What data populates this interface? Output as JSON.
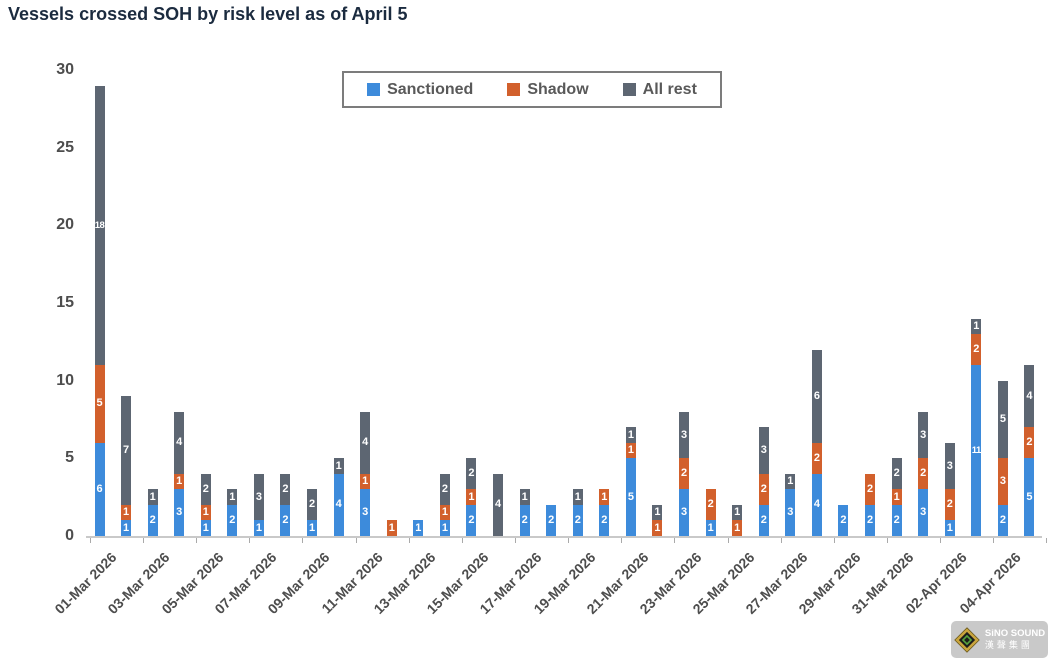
{
  "title": "Vessels crossed SOH by risk level as of April 5",
  "chart_data": {
    "type": "bar",
    "stacked": true,
    "title": "Vessels crossed SOH by risk level as of April 5",
    "categories": [
      "01-Mar 2026",
      "02-Mar 2026",
      "03-Mar 2026",
      "04-Mar 2026",
      "05-Mar 2026",
      "06-Mar 2026",
      "07-Mar 2026",
      "08-Mar 2026",
      "09-Mar 2026",
      "10-Mar 2026",
      "11-Mar 2026",
      "12-Mar 2026",
      "13-Mar 2026",
      "14-Mar 2026",
      "15-Mar 2026",
      "16-Mar 2026",
      "17-Mar 2026",
      "18-Mar 2026",
      "19-Mar 2026",
      "20-Mar 2026",
      "21-Mar 2026",
      "22-Mar 2026",
      "23-Mar 2026",
      "24-Mar 2026",
      "25-Mar 2026",
      "26-Mar 2026",
      "27-Mar 2026",
      "28-Mar 2026",
      "29-Mar 2026",
      "30-Mar 2026",
      "31-Mar 2026",
      "01-Apr 2026",
      "02-Apr 2026",
      "03-Apr 2026",
      "04-Apr 2026",
      "05-Apr 2026"
    ],
    "x_tick_labels": [
      "01-Mar 2026",
      "03-Mar 2026",
      "05-Mar 2026",
      "07-Mar 2026",
      "09-Mar 2026",
      "11-Mar 2026",
      "13-Mar 2026",
      "15-Mar 2026",
      "17-Mar 2026",
      "19-Mar 2026",
      "21-Mar 2026",
      "23-Mar 2026",
      "25-Mar 2026",
      "27-Mar 2026",
      "29-Mar 2026",
      "31-Mar 2026",
      "02-Apr 2026",
      "04-Apr 2026"
    ],
    "series": [
      {
        "name": "Sanctioned",
        "color": "#3d8bdb",
        "values": [
          6,
          1,
          2,
          3,
          1,
          2,
          1,
          2,
          1,
          4,
          3,
          0,
          1,
          1,
          2,
          0,
          2,
          2,
          2,
          2,
          5,
          0,
          3,
          1,
          0,
          2,
          3,
          4,
          2,
          2,
          2,
          3,
          1,
          11,
          2,
          5
        ]
      },
      {
        "name": "Shadow",
        "color": "#d2602c",
        "values": [
          5,
          1,
          0,
          1,
          1,
          0,
          0,
          0,
          0,
          0,
          1,
          1,
          0,
          1,
          1,
          0,
          0,
          0,
          0,
          1,
          1,
          1,
          2,
          2,
          1,
          2,
          0,
          2,
          0,
          2,
          1,
          2,
          2,
          2,
          3,
          2
        ]
      },
      {
        "name": "All rest",
        "color": "#5d6672",
        "values": [
          18,
          7,
          1,
          4,
          2,
          1,
          3,
          2,
          2,
          1,
          4,
          0,
          0,
          2,
          2,
          4,
          1,
          0,
          1,
          0,
          1,
          1,
          3,
          0,
          1,
          3,
          1,
          6,
          0,
          0,
          2,
          3,
          3,
          1,
          5,
          4
        ]
      }
    ],
    "ylim": [
      0,
      30
    ],
    "yticks": [
      0,
      5,
      10,
      15,
      20,
      25,
      30
    ],
    "grid": false,
    "legend_position": "top-center",
    "bar_value_labels": true
  },
  "watermark": {
    "line1": "SiNO SOUND",
    "line2": "漢聲集團"
  }
}
